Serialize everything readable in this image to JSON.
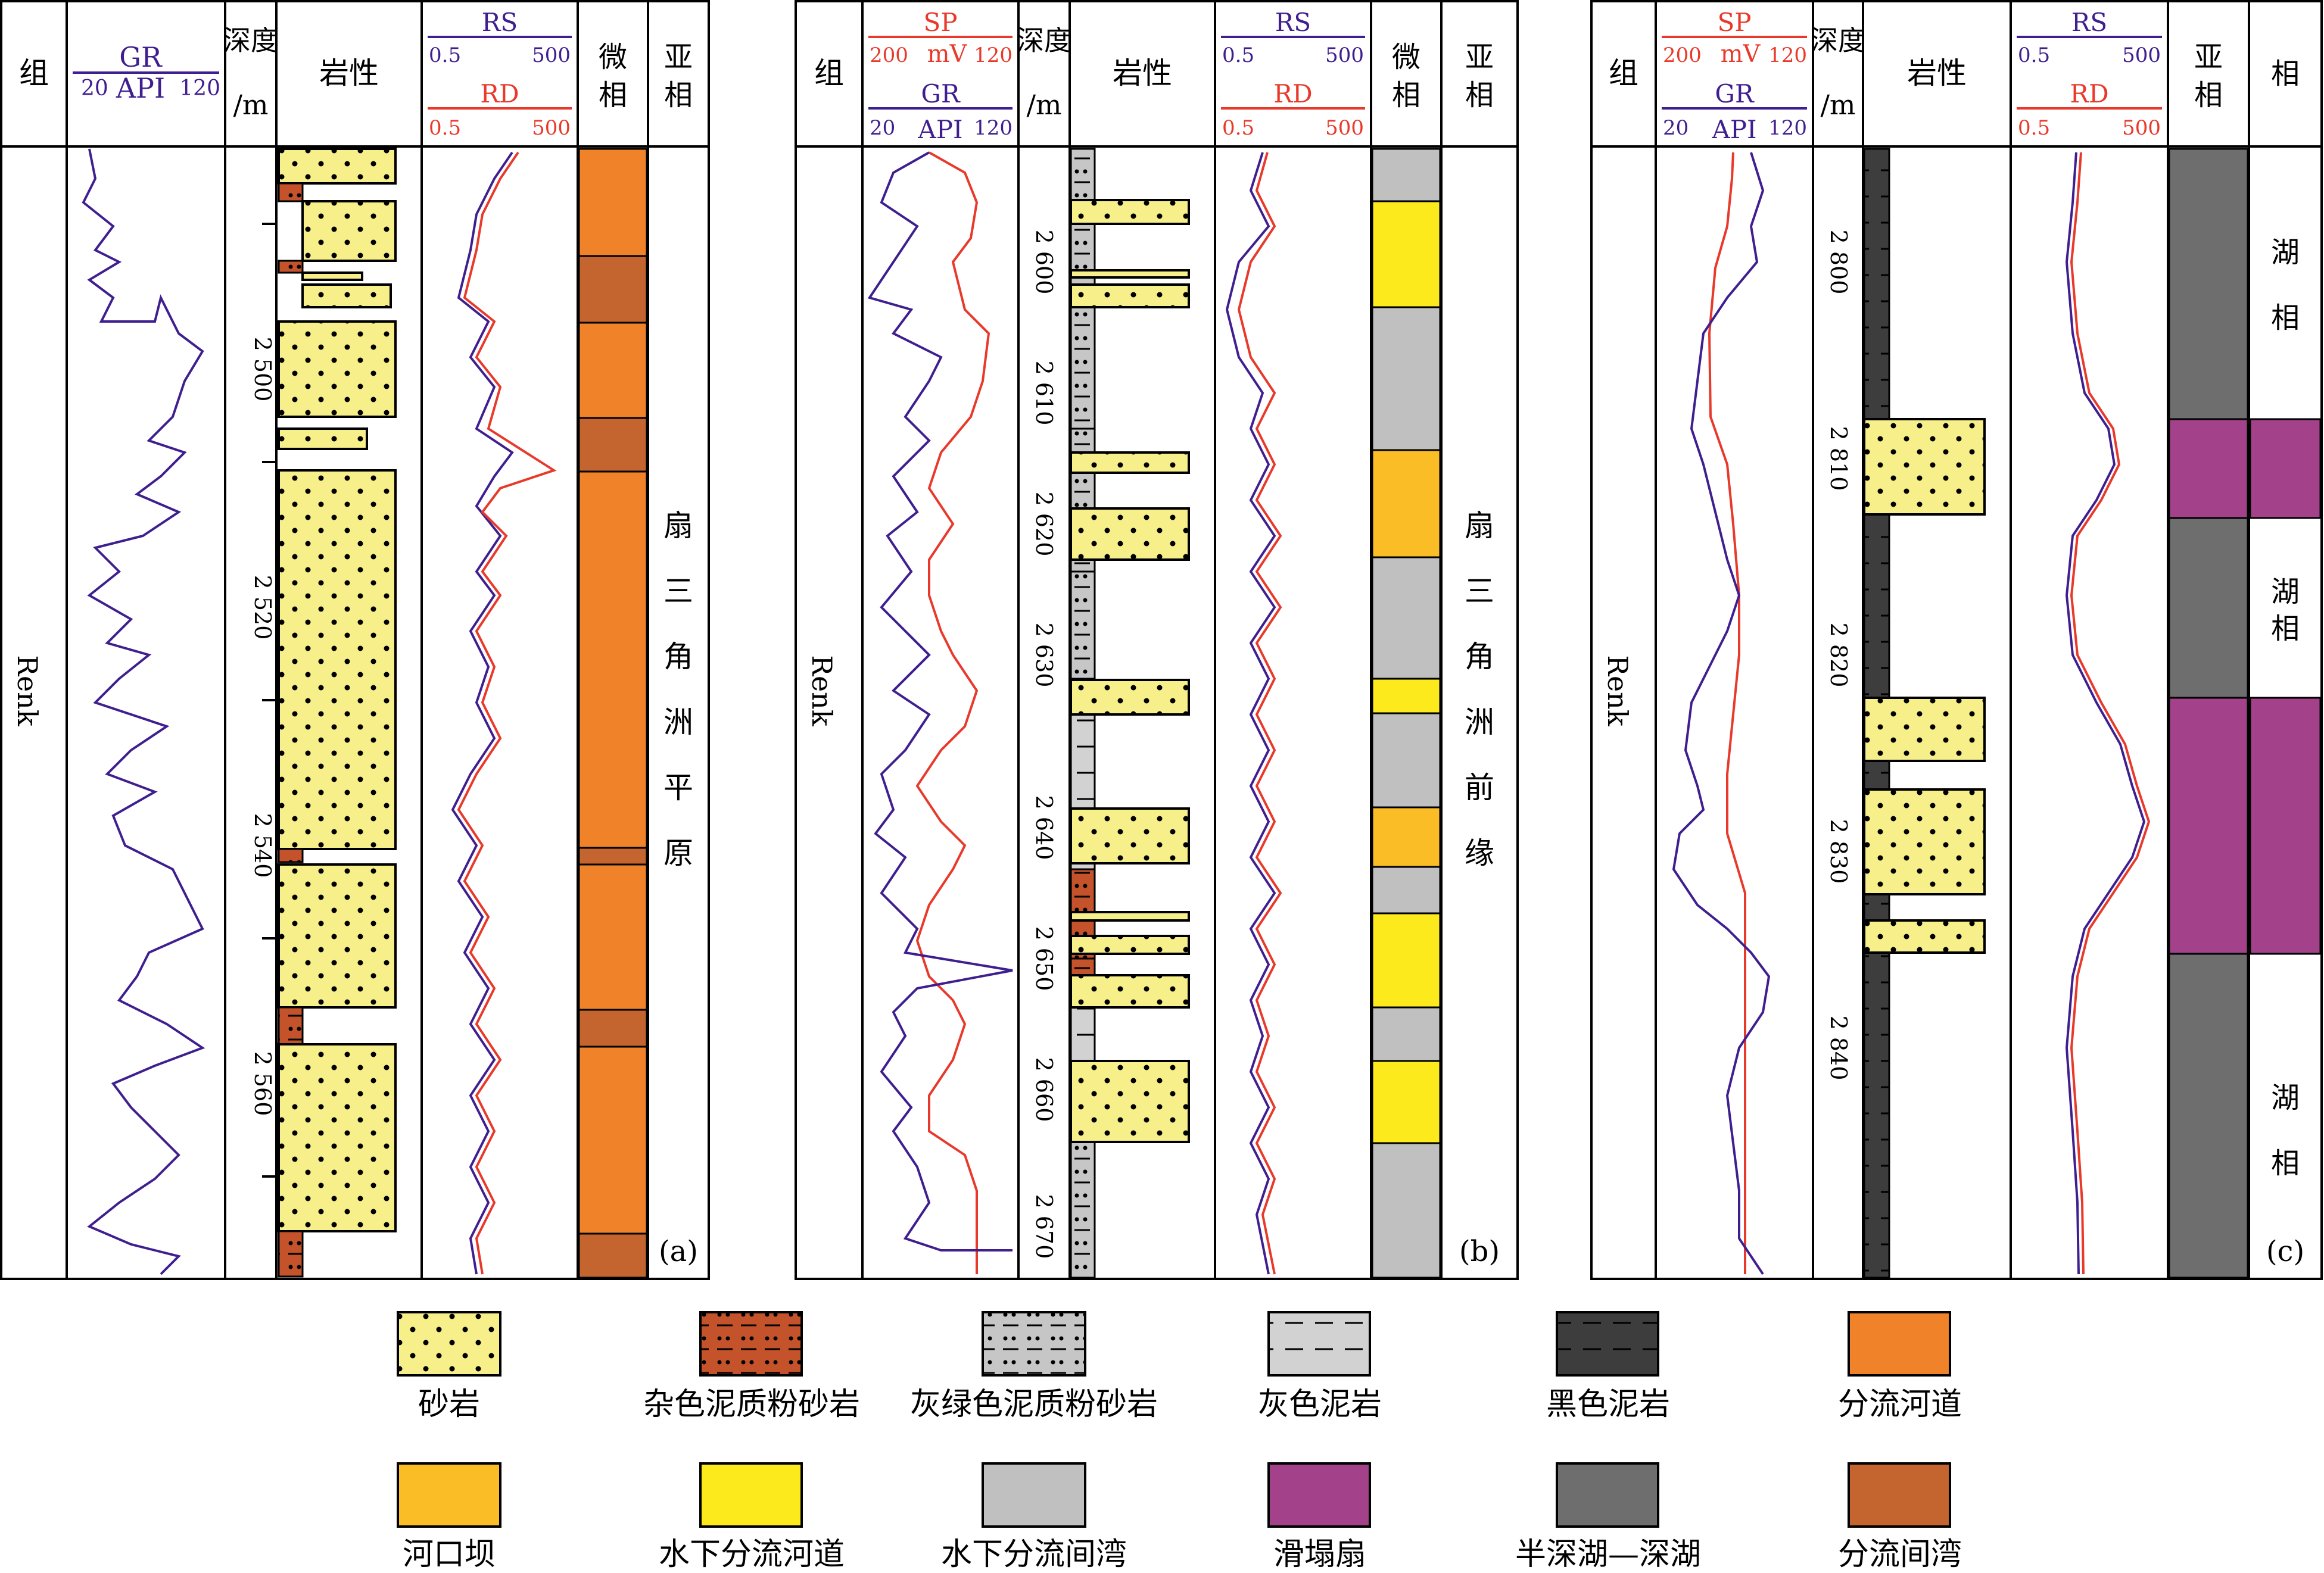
{
  "panels": [
    {
      "tag": "(a)",
      "formation": "Renk",
      "depth_ticks": [
        "2 500",
        "2 520",
        "2 540",
        "2 560"
      ],
      "subfacies": "扇三角洲平原"
    },
    {
      "tag": "(b)",
      "formation": "Renk",
      "depth_ticks": [
        "2 600",
        "2 610",
        "2 620",
        "2 630",
        "2 640",
        "2 650",
        "2 660",
        "2 670"
      ],
      "subfacies": "扇三角洲前缘"
    },
    {
      "tag": "(c)",
      "formation": "Renk",
      "depth_ticks": [
        "2 800",
        "2 810",
        "2 820",
        "2 830",
        "2 840"
      ],
      "facies": [
        "湖相",
        "湖相",
        "湖相"
      ]
    }
  ],
  "headers": {
    "formation": "组",
    "depth_1": "深度",
    "depth_2": "/m",
    "lithology": "岩性",
    "microfacies_1": "微",
    "microfacies_2": "相",
    "subfacies_1": "亚",
    "subfacies_2": "相",
    "facies": "相",
    "gr": "GR",
    "api": "API",
    "gr_min": "20",
    "gr_max": "120",
    "sp": "SP",
    "mv": "mV",
    "sp_min": "200",
    "sp_max": "120",
    "rs": "RS",
    "rd": "RD",
    "res_min": "0.5",
    "res_max": "500"
  },
  "legend": [
    {
      "label": "砂岩",
      "pattern": "sandstone",
      "color": "#f7ef8a"
    },
    {
      "label": "杂色泥质粉砂岩",
      "pattern": "variegated-muddy-siltstone",
      "color": "#c4522a"
    },
    {
      "label": "灰绿色泥质粉砂岩",
      "pattern": "grey-green-muddy-siltstone",
      "color": "#c6c6c6"
    },
    {
      "label": "灰色泥岩",
      "pattern": "grey-mudstone",
      "color": "#d2d2d2"
    },
    {
      "label": "黑色泥岩",
      "pattern": "black-mudstone",
      "color": "#3d3d3d"
    },
    {
      "label": "分流河道",
      "pattern": "solid",
      "color": "#f0822a"
    },
    {
      "label": "河口坝",
      "pattern": "solid",
      "color": "#fbbd26"
    },
    {
      "label": "水下分流河道",
      "pattern": "solid",
      "color": "#fdea1c"
    },
    {
      "label": "水下分流间湾",
      "pattern": "solid",
      "color": "#c0c0c0"
    },
    {
      "label": "滑塌扇",
      "pattern": "solid",
      "color": "#a3428a"
    },
    {
      "label": "半深湖—深湖",
      "pattern": "solid",
      "color": "#6e6e6e"
    },
    {
      "label": "分流间湾",
      "pattern": "solid",
      "color": "#c4652f"
    }
  ],
  "colors": {
    "gr_curve": "#3f1f8f",
    "sp_curve": "#e8392a",
    "rs_curve": "#3f1f8f",
    "rd_curve": "#e8392a",
    "sand": "#f7ef8a",
    "variegated": "#c4522a",
    "distributary_channel": "#f0822a",
    "interdistributary_bay": "#c4652f",
    "mouth_bar": "#fbbd26",
    "underwater_channel": "#fdea1c",
    "underwater_bay": "#c0c0c0",
    "slump_fan": "#a3428a",
    "deep_lake": "#6e6e6e",
    "black_mud": "#3d3d3d",
    "grey_mud": "#d2d2d2"
  }
}
